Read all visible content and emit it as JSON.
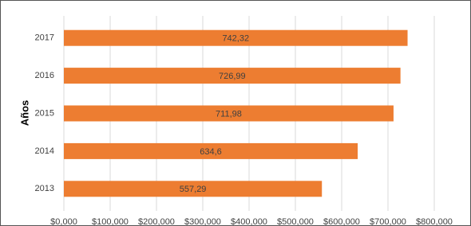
{
  "chart_data": {
    "type": "bar",
    "orientation": "horizontal",
    "y_label": "Años",
    "categories": [
      "2013",
      "2014",
      "2015",
      "2016",
      "2017"
    ],
    "values": [
      557290,
      634600,
      711980,
      726990,
      742320
    ],
    "value_labels": [
      "557,29",
      "634,6",
      "711,98",
      "726,99",
      "742,32"
    ],
    "color": "#ed7d31",
    "xlim": [
      0,
      800000
    ],
    "xticks": [
      {
        "value": 0,
        "label": "$0,000"
      },
      {
        "value": 100000,
        "label": "$100,000"
      },
      {
        "value": 200000,
        "label": "$200,000"
      },
      {
        "value": 300000,
        "label": "$300,000"
      },
      {
        "value": 400000,
        "label": "$400,000"
      },
      {
        "value": 500000,
        "label": "$500,000"
      },
      {
        "value": 600000,
        "label": "$600,000"
      },
      {
        "value": 700000,
        "label": "$700,000"
      },
      {
        "value": 800000,
        "label": "$800,000"
      }
    ],
    "grid": true
  }
}
